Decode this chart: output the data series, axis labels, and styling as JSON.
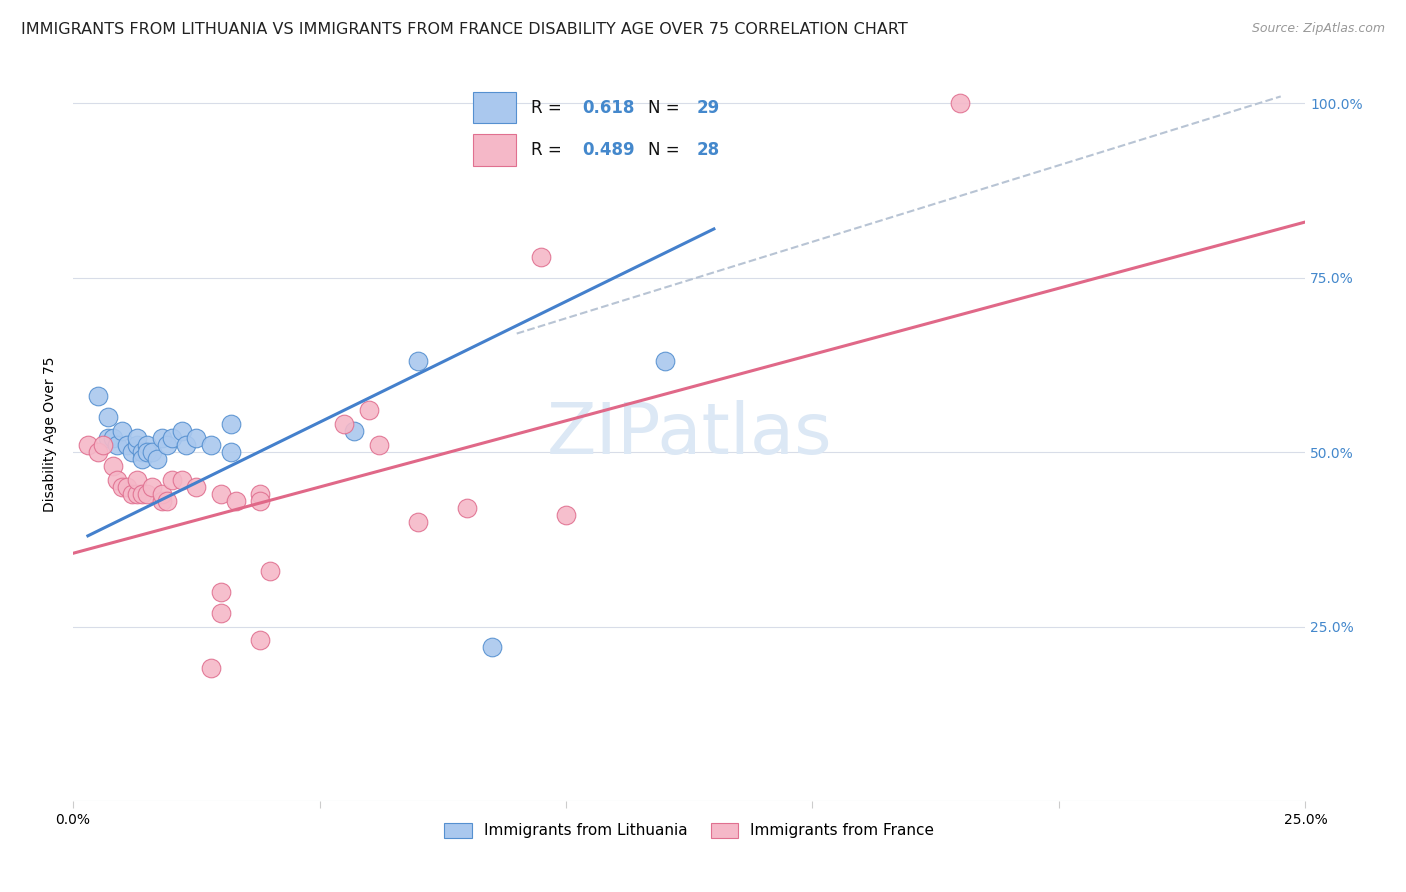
{
  "title": "IMMIGRANTS FROM LITHUANIA VS IMMIGRANTS FROM FRANCE DISABILITY AGE OVER 75 CORRELATION CHART",
  "source": "Source: ZipAtlas.com",
  "ylabel": "Disability Age Over 75",
  "watermark": "ZIPatlas",
  "legend_label1": "Immigrants from Lithuania",
  "legend_label2": "Immigrants from France",
  "xmin": 0.0,
  "xmax": 0.25,
  "ymin": 0.0,
  "ymax": 1.05,
  "xticks": [
    0.0,
    0.05,
    0.1,
    0.15,
    0.2,
    0.25
  ],
  "xtick_labels": [
    "0.0%",
    "",
    "",
    "",
    "",
    "25.0%"
  ],
  "yticks": [
    0.0,
    0.25,
    0.5,
    0.75,
    1.0
  ],
  "ytick_labels": [
    "",
    "25.0%",
    "50.0%",
    "75.0%",
    "100.0%"
  ],
  "blue_color": "#aac8ee",
  "pink_color": "#f5b8c8",
  "blue_edge_color": "#5590d0",
  "pink_edge_color": "#e07090",
  "blue_line_color": "#4480cc",
  "pink_line_color": "#e06888",
  "dashed_line_color": "#b8c4d4",
  "blue_scatter": [
    [
      0.005,
      0.58
    ],
    [
      0.007,
      0.55
    ],
    [
      0.007,
      0.52
    ],
    [
      0.008,
      0.52
    ],
    [
      0.009,
      0.51
    ],
    [
      0.01,
      0.53
    ],
    [
      0.011,
      0.51
    ],
    [
      0.012,
      0.5
    ],
    [
      0.013,
      0.51
    ],
    [
      0.013,
      0.52
    ],
    [
      0.014,
      0.5
    ],
    [
      0.014,
      0.49
    ],
    [
      0.015,
      0.51
    ],
    [
      0.015,
      0.5
    ],
    [
      0.016,
      0.5
    ],
    [
      0.017,
      0.49
    ],
    [
      0.018,
      0.52
    ],
    [
      0.019,
      0.51
    ],
    [
      0.02,
      0.52
    ],
    [
      0.022,
      0.53
    ],
    [
      0.023,
      0.51
    ],
    [
      0.025,
      0.52
    ],
    [
      0.028,
      0.51
    ],
    [
      0.032,
      0.54
    ],
    [
      0.032,
      0.5
    ],
    [
      0.057,
      0.53
    ],
    [
      0.07,
      0.63
    ],
    [
      0.085,
      0.22
    ],
    [
      0.12,
      0.63
    ]
  ],
  "pink_scatter": [
    [
      0.003,
      0.51
    ],
    [
      0.005,
      0.5
    ],
    [
      0.006,
      0.51
    ],
    [
      0.008,
      0.48
    ],
    [
      0.009,
      0.46
    ],
    [
      0.01,
      0.45
    ],
    [
      0.011,
      0.45
    ],
    [
      0.012,
      0.44
    ],
    [
      0.013,
      0.44
    ],
    [
      0.013,
      0.46
    ],
    [
      0.014,
      0.44
    ],
    [
      0.015,
      0.44
    ],
    [
      0.016,
      0.45
    ],
    [
      0.018,
      0.43
    ],
    [
      0.018,
      0.44
    ],
    [
      0.019,
      0.43
    ],
    [
      0.02,
      0.46
    ],
    [
      0.022,
      0.46
    ],
    [
      0.025,
      0.45
    ],
    [
      0.03,
      0.44
    ],
    [
      0.033,
      0.43
    ],
    [
      0.038,
      0.44
    ],
    [
      0.038,
      0.43
    ],
    [
      0.055,
      0.54
    ],
    [
      0.06,
      0.56
    ],
    [
      0.062,
      0.51
    ],
    [
      0.08,
      0.42
    ],
    [
      0.03,
      0.27
    ],
    [
      0.038,
      0.23
    ],
    [
      0.095,
      0.78
    ],
    [
      0.028,
      0.19
    ],
    [
      0.18,
      1.0
    ],
    [
      0.03,
      0.3
    ],
    [
      0.04,
      0.33
    ],
    [
      0.07,
      0.4
    ],
    [
      0.1,
      0.41
    ]
  ],
  "blue_line_x": [
    0.003,
    0.13
  ],
  "blue_line_y": [
    0.38,
    0.82
  ],
  "pink_line_x": [
    0.0,
    0.25
  ],
  "pink_line_y": [
    0.355,
    0.83
  ],
  "dashed_line_x": [
    0.09,
    0.245
  ],
  "dashed_line_y": [
    0.67,
    1.01
  ],
  "background_color": "#ffffff",
  "grid_color": "#d8dde8",
  "title_fontsize": 11.5,
  "axis_label_fontsize": 10,
  "tick_fontsize": 10,
  "source_fontsize": 9,
  "watermark_fontsize": 52,
  "watermark_color": "#dce8f5",
  "right_tick_color": "#4488cc"
}
